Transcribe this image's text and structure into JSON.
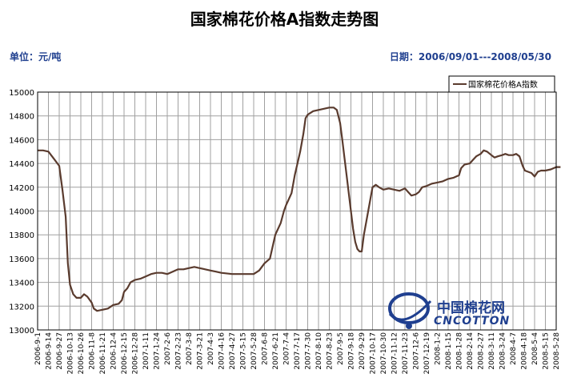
{
  "header": {
    "title": "国家棉花价格A指数走势图",
    "unit": "单位：元/吨",
    "date_range": "日期：2006/09/01---2008/05/30"
  },
  "logo": {
    "cn": "中国棉花网",
    "en": "CNCOTTON"
  },
  "colors": {
    "line": "#5a3b2e",
    "grid": "#a0a0a0",
    "frame": "#000000",
    "logo": "#1f3f8f"
  },
  "chart_data": {
    "type": "line",
    "title": "国家棉花价格A指数走势图",
    "legend": {
      "entry": "国家棉花价格A指数",
      "position": "top-right"
    },
    "grid": true,
    "ylim": [
      13000,
      15000
    ],
    "yticks": [
      13000,
      13200,
      13400,
      13600,
      13800,
      14000,
      14200,
      14400,
      14600,
      14800,
      15000
    ],
    "x_labels": [
      "2006-9-1",
      "2006-9-14",
      "2006-9-27",
      "2006-10-13",
      "2006-10-26",
      "2006-11-8",
      "2006-11-21",
      "2006-12-4",
      "2006-12-15",
      "2006-12-28",
      "2007-1-11",
      "2007-1-24",
      "2007-2-6",
      "2007-2-23",
      "2007-3-8",
      "2007-3-21",
      "2007-4-3",
      "2007-4-16",
      "2007-4-27",
      "2007-5-15",
      "2007-5-28",
      "2007-6-8",
      "2007-6-21",
      "2007-7-4",
      "2007-7-17",
      "2007-7-30",
      "2007-8-10",
      "2007-8-23",
      "2007-9-5",
      "2007-9-18",
      "2007-9-29",
      "2007-10-17",
      "2007-10-30",
      "2007-11-12",
      "2007-11-23",
      "2007-12-6",
      "2007-12-19",
      "2008-1-2",
      "2008-1-15",
      "2008-1-28",
      "2008-2-14",
      "2008-2-27",
      "2008-3-11",
      "2008-3-24",
      "2008-4-7",
      "2008-4-18",
      "2008-5-4",
      "2008-5-15",
      "2008-5-28"
    ],
    "series": [
      {
        "name": "国家棉花价格A指数",
        "points": [
          [
            0,
            14510
          ],
          [
            0.5,
            14510
          ],
          [
            1,
            14500
          ],
          [
            1.5,
            14440
          ],
          [
            2,
            14380
          ],
          [
            2.3,
            14180
          ],
          [
            2.6,
            13950
          ],
          [
            2.8,
            13560
          ],
          [
            3,
            13380
          ],
          [
            3.3,
            13300
          ],
          [
            3.6,
            13270
          ],
          [
            4,
            13270
          ],
          [
            4.3,
            13300
          ],
          [
            4.6,
            13280
          ],
          [
            5,
            13230
          ],
          [
            5.2,
            13180
          ],
          [
            5.5,
            13160
          ],
          [
            6,
            13170
          ],
          [
            6.5,
            13180
          ],
          [
            7,
            13210
          ],
          [
            7.5,
            13220
          ],
          [
            7.8,
            13250
          ],
          [
            8,
            13320
          ],
          [
            8.3,
            13350
          ],
          [
            8.6,
            13400
          ],
          [
            9,
            13420
          ],
          [
            9.5,
            13430
          ],
          [
            10,
            13450
          ],
          [
            10.5,
            13470
          ],
          [
            11,
            13480
          ],
          [
            11.5,
            13480
          ],
          [
            12,
            13470
          ],
          [
            12.5,
            13490
          ],
          [
            13,
            13510
          ],
          [
            13.5,
            13510
          ],
          [
            14,
            13520
          ],
          [
            14.5,
            13530
          ],
          [
            15,
            13520
          ],
          [
            15.5,
            13510
          ],
          [
            16,
            13500
          ],
          [
            16.5,
            13490
          ],
          [
            17,
            13480
          ],
          [
            18,
            13470
          ],
          [
            19,
            13470
          ],
          [
            20,
            13470
          ],
          [
            20.5,
            13500
          ],
          [
            21,
            13560
          ],
          [
            21.5,
            13600
          ],
          [
            21.8,
            13720
          ],
          [
            22,
            13800
          ],
          [
            22.5,
            13900
          ],
          [
            22.8,
            14000
          ],
          [
            23,
            14050
          ],
          [
            23.5,
            14150
          ],
          [
            23.8,
            14300
          ],
          [
            24,
            14380
          ],
          [
            24.3,
            14500
          ],
          [
            24.6,
            14650
          ],
          [
            24.8,
            14780
          ],
          [
            25,
            14810
          ],
          [
            25.5,
            14840
          ],
          [
            26,
            14850
          ],
          [
            26.5,
            14860
          ],
          [
            27,
            14870
          ],
          [
            27.4,
            14870
          ],
          [
            27.7,
            14850
          ],
          [
            28,
            14740
          ],
          [
            28.2,
            14600
          ],
          [
            28.4,
            14450
          ],
          [
            28.6,
            14300
          ],
          [
            28.8,
            14150
          ],
          [
            29,
            14000
          ],
          [
            29.2,
            13850
          ],
          [
            29.4,
            13740
          ],
          [
            29.6,
            13680
          ],
          [
            29.8,
            13660
          ],
          [
            30,
            13660
          ],
          [
            30.2,
            13800
          ],
          [
            30.4,
            13900
          ],
          [
            30.6,
            14000
          ],
          [
            30.8,
            14100
          ],
          [
            31,
            14200
          ],
          [
            31.3,
            14220
          ],
          [
            31.6,
            14200
          ],
          [
            32,
            14180
          ],
          [
            32.5,
            14190
          ],
          [
            33,
            14180
          ],
          [
            33.5,
            14170
          ],
          [
            34,
            14190
          ],
          [
            34.3,
            14160
          ],
          [
            34.6,
            14130
          ],
          [
            35,
            14140
          ],
          [
            35.3,
            14160
          ],
          [
            35.6,
            14200
          ],
          [
            36,
            14210
          ],
          [
            36.5,
            14230
          ],
          [
            37,
            14240
          ],
          [
            37.5,
            14250
          ],
          [
            38,
            14270
          ],
          [
            38.5,
            14280
          ],
          [
            39,
            14300
          ],
          [
            39.2,
            14360
          ],
          [
            39.5,
            14390
          ],
          [
            40,
            14400
          ],
          [
            40.3,
            14430
          ],
          [
            40.6,
            14460
          ],
          [
            41,
            14480
          ],
          [
            41.3,
            14510
          ],
          [
            41.6,
            14500
          ],
          [
            42,
            14470
          ],
          [
            42.3,
            14450
          ],
          [
            42.6,
            14460
          ],
          [
            43,
            14470
          ],
          [
            43.3,
            14480
          ],
          [
            43.6,
            14470
          ],
          [
            44,
            14470
          ],
          [
            44.3,
            14480
          ],
          [
            44.6,
            14460
          ],
          [
            44.9,
            14380
          ],
          [
            45.1,
            14340
          ],
          [
            45.4,
            14330
          ],
          [
            45.7,
            14320
          ],
          [
            46,
            14290
          ],
          [
            46.3,
            14330
          ],
          [
            46.6,
            14340
          ],
          [
            47,
            14340
          ],
          [
            47.5,
            14350
          ],
          [
            48,
            14370
          ],
          [
            48.4,
            14370
          ]
        ]
      }
    ]
  }
}
